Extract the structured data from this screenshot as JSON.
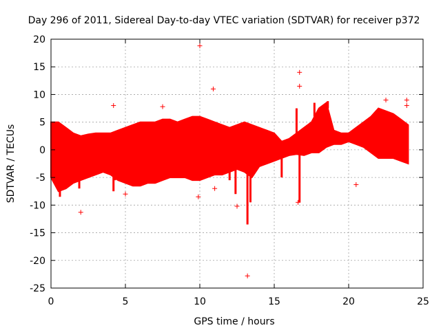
{
  "chart_data": {
    "type": "scatter",
    "title": "Day 296 of 2011, Sidereal Day-to-day VTEC variation (SDTVAR) for receiver p372",
    "xlabel": "GPS time / hours",
    "ylabel": "SDTVAR / TECUs",
    "xlim": [
      0,
      25
    ],
    "ylim": [
      -25,
      20
    ],
    "xticks": [
      "0",
      "5",
      "10",
      "15",
      "20",
      "25"
    ],
    "yticks": [
      "20",
      "15",
      "10",
      "5",
      "0",
      "-5",
      "-10",
      "-15",
      "-20",
      "-25"
    ],
    "grid": true,
    "legend": "none",
    "marker": "+",
    "color": "#ff0000",
    "band": {
      "x": [
        0.0,
        0.5,
        1.0,
        1.5,
        2.0,
        2.5,
        3.0,
        3.5,
        4.0,
        4.5,
        5.0,
        5.5,
        6.0,
        6.5,
        7.0,
        7.5,
        8.0,
        8.5,
        9.0,
        9.5,
        10.0,
        10.5,
        11.0,
        11.5,
        12.0,
        12.5,
        13.0,
        13.5,
        14.0,
        14.5,
        15.0,
        15.5,
        16.0,
        16.5,
        17.0,
        17.5,
        18.0,
        18.5,
        19.0,
        19.5,
        20.0,
        20.5,
        21.0,
        21.5,
        22.0,
        22.5,
        23.0,
        23.5,
        24.0
      ],
      "upper": [
        5.0,
        5.0,
        4.0,
        3.0,
        2.5,
        2.8,
        3.0,
        3.0,
        3.0,
        3.5,
        4.0,
        4.5,
        5.0,
        5.0,
        5.0,
        5.5,
        5.5,
        5.0,
        5.5,
        6.0,
        6.0,
        5.5,
        5.0,
        4.5,
        4.0,
        4.5,
        5.0,
        4.5,
        4.0,
        3.5,
        3.0,
        1.5,
        2.0,
        3.0,
        4.0,
        5.0,
        7.5,
        8.5,
        3.5,
        3.0,
        3.0,
        4.0,
        5.0,
        6.0,
        7.5,
        7.0,
        6.5,
        5.5,
        4.5
      ],
      "lower": [
        -5.0,
        -7.5,
        -7.0,
        -6.0,
        -5.5,
        -5.0,
        -4.5,
        -4.0,
        -4.5,
        -5.5,
        -6.0,
        -6.5,
        -6.5,
        -6.0,
        -6.0,
        -5.5,
        -5.0,
        -5.0,
        -5.0,
        -5.5,
        -5.5,
        -5.0,
        -4.5,
        -4.5,
        -4.0,
        -3.5,
        -4.0,
        -5.0,
        -3.0,
        -2.5,
        -2.0,
        -1.5,
        -1.0,
        -0.8,
        -1.0,
        -0.5,
        -0.5,
        0.5,
        1.0,
        1.0,
        1.5,
        1.0,
        0.5,
        -0.5,
        -1.5,
        -1.5,
        -1.5,
        -2.0,
        -2.5
      ]
    },
    "spikes": [
      {
        "x": 0.6,
        "y": -8.5
      },
      {
        "x": 1.9,
        "y": -7.0
      },
      {
        "x": 4.2,
        "y": -7.5
      },
      {
        "x": 4.3,
        "y": -5.5
      },
      {
        "x": 12.0,
        "y": -5.5
      },
      {
        "x": 12.4,
        "y": -8.0
      },
      {
        "x": 13.2,
        "y": -13.5
      },
      {
        "x": 13.4,
        "y": -9.5
      },
      {
        "x": 16.7,
        "y": -9.5
      },
      {
        "x": 16.5,
        "y": 7.5
      },
      {
        "x": 17.7,
        "y": 8.5
      },
      {
        "x": 18.6,
        "y": 8.8
      },
      {
        "x": 15.5,
        "y": -5.0
      }
    ],
    "outliers": [
      {
        "x": 10.0,
        "y": 18.8
      },
      {
        "x": 16.7,
        "y": 14.0
      },
      {
        "x": 16.7,
        "y": 11.5
      },
      {
        "x": 10.9,
        "y": 11.0
      },
      {
        "x": 4.2,
        "y": 8.0
      },
      {
        "x": 7.5,
        "y": 7.8
      },
      {
        "x": 22.5,
        "y": 9.0
      },
      {
        "x": 23.9,
        "y": 9.0
      },
      {
        "x": 23.9,
        "y": 8.0
      },
      {
        "x": 2.0,
        "y": -11.3
      },
      {
        "x": 13.2,
        "y": -22.8
      },
      {
        "x": 12.5,
        "y": -10.2
      },
      {
        "x": 20.5,
        "y": -6.3
      },
      {
        "x": 11.0,
        "y": -7.0
      },
      {
        "x": 5.0,
        "y": -8.0
      },
      {
        "x": 9.9,
        "y": -8.5
      },
      {
        "x": 16.6,
        "y": -9.5
      }
    ]
  }
}
